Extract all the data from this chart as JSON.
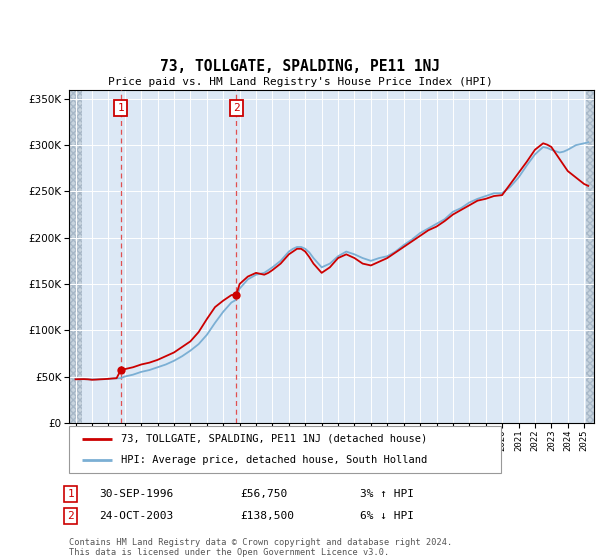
{
  "title": "73, TOLLGATE, SPALDING, PE11 1NJ",
  "subtitle": "Price paid vs. HM Land Registry's House Price Index (HPI)",
  "ylim": [
    0,
    360000
  ],
  "yticks": [
    0,
    50000,
    100000,
    150000,
    200000,
    250000,
    300000,
    350000
  ],
  "hpi_color": "#7bafd4",
  "price_color": "#cc0000",
  "annotation_box_color": "#cc0000",
  "dashed_line_color": "#e05050",
  "purchase1_year": 1996.75,
  "purchase1_price": 56750,
  "purchase1_label": "1",
  "purchase1_date": "30-SEP-1996",
  "purchase1_pct": "3%",
  "purchase1_dir": "↑",
  "purchase2_year": 2003.8,
  "purchase2_price": 138500,
  "purchase2_label": "2",
  "purchase2_date": "24-OCT-2003",
  "purchase2_pct": "6%",
  "purchase2_dir": "↓",
  "legend_line1": "73, TOLLGATE, SPALDING, PE11 1NJ (detached house)",
  "legend_line2": "HPI: Average price, detached house, South Holland",
  "footer": "Contains HM Land Registry data © Crown copyright and database right 2024.\nThis data is licensed under the Open Government Licence v3.0.",
  "xmin": 1993.6,
  "xmax": 2025.6,
  "hpi_data": [
    [
      1994.0,
      47000
    ],
    [
      1994.25,
      47100
    ],
    [
      1994.5,
      47200
    ],
    [
      1994.75,
      47000
    ],
    [
      1995.0,
      46800
    ],
    [
      1995.25,
      46900
    ],
    [
      1995.5,
      47000
    ],
    [
      1995.75,
      47200
    ],
    [
      1996.0,
      47500
    ],
    [
      1996.25,
      47800
    ],
    [
      1996.5,
      48000
    ],
    [
      1996.75,
      48200
    ],
    [
      1997.0,
      50000
    ],
    [
      1997.25,
      51000
    ],
    [
      1997.5,
      52000
    ],
    [
      1997.75,
      53500
    ],
    [
      1998.0,
      55000
    ],
    [
      1998.25,
      56000
    ],
    [
      1998.5,
      57000
    ],
    [
      1998.75,
      58500
    ],
    [
      1999.0,
      60000
    ],
    [
      1999.25,
      61500
    ],
    [
      1999.5,
      63000
    ],
    [
      1999.75,
      65000
    ],
    [
      2000.0,
      67000
    ],
    [
      2000.25,
      69500
    ],
    [
      2000.5,
      72000
    ],
    [
      2000.75,
      75000
    ],
    [
      2001.0,
      78000
    ],
    [
      2001.25,
      81500
    ],
    [
      2001.5,
      85000
    ],
    [
      2001.75,
      90000
    ],
    [
      2002.0,
      95000
    ],
    [
      2002.25,
      101500
    ],
    [
      2002.5,
      108000
    ],
    [
      2002.75,
      114000
    ],
    [
      2003.0,
      120000
    ],
    [
      2003.25,
      125000
    ],
    [
      2003.5,
      130000
    ],
    [
      2003.75,
      132500
    ],
    [
      2004.0,
      145000
    ],
    [
      2004.25,
      150000
    ],
    [
      2004.5,
      155000
    ],
    [
      2004.75,
      157500
    ],
    [
      2005.0,
      160000
    ],
    [
      2005.25,
      161000
    ],
    [
      2005.5,
      162000
    ],
    [
      2005.75,
      165000
    ],
    [
      2006.0,
      168000
    ],
    [
      2006.25,
      171500
    ],
    [
      2006.5,
      175000
    ],
    [
      2006.75,
      180000
    ],
    [
      2007.0,
      185000
    ],
    [
      2007.25,
      188000
    ],
    [
      2007.5,
      190000
    ],
    [
      2007.75,
      190000
    ],
    [
      2008.0,
      188000
    ],
    [
      2008.25,
      184000
    ],
    [
      2008.5,
      178000
    ],
    [
      2008.75,
      173000
    ],
    [
      2009.0,
      168000
    ],
    [
      2009.25,
      170000
    ],
    [
      2009.5,
      172000
    ],
    [
      2009.75,
      176000
    ],
    [
      2010.0,
      180000
    ],
    [
      2010.25,
      182500
    ],
    [
      2010.5,
      185000
    ],
    [
      2010.75,
      183500
    ],
    [
      2011.0,
      182000
    ],
    [
      2011.25,
      180000
    ],
    [
      2011.5,
      178000
    ],
    [
      2011.75,
      176500
    ],
    [
      2012.0,
      175000
    ],
    [
      2012.25,
      176500
    ],
    [
      2012.5,
      178000
    ],
    [
      2012.75,
      179000
    ],
    [
      2013.0,
      180000
    ],
    [
      2013.25,
      182500
    ],
    [
      2013.5,
      185000
    ],
    [
      2013.75,
      188500
    ],
    [
      2014.0,
      192000
    ],
    [
      2014.25,
      195000
    ],
    [
      2014.5,
      198000
    ],
    [
      2014.75,
      201500
    ],
    [
      2015.0,
      205000
    ],
    [
      2015.25,
      207500
    ],
    [
      2015.5,
      210000
    ],
    [
      2015.75,
      212500
    ],
    [
      2016.0,
      215000
    ],
    [
      2016.25,
      217500
    ],
    [
      2016.5,
      220000
    ],
    [
      2016.75,
      224000
    ],
    [
      2017.0,
      228000
    ],
    [
      2017.25,
      230000
    ],
    [
      2017.5,
      232000
    ],
    [
      2017.75,
      235000
    ],
    [
      2018.0,
      238000
    ],
    [
      2018.25,
      240000
    ],
    [
      2018.5,
      242000
    ],
    [
      2018.75,
      243500
    ],
    [
      2019.0,
      245000
    ],
    [
      2019.25,
      246500
    ],
    [
      2019.5,
      248000
    ],
    [
      2019.75,
      248000
    ],
    [
      2020.0,
      248000
    ],
    [
      2020.25,
      251500
    ],
    [
      2020.5,
      255000
    ],
    [
      2020.75,
      260000
    ],
    [
      2021.0,
      265000
    ],
    [
      2021.25,
      271500
    ],
    [
      2021.5,
      278000
    ],
    [
      2021.75,
      284000
    ],
    [
      2022.0,
      290000
    ],
    [
      2022.25,
      294000
    ],
    [
      2022.5,
      298000
    ],
    [
      2022.75,
      297000
    ],
    [
      2023.0,
      295000
    ],
    [
      2023.25,
      293500
    ],
    [
      2023.5,
      292000
    ],
    [
      2023.75,
      293000
    ],
    [
      2024.0,
      295000
    ],
    [
      2024.25,
      297500
    ],
    [
      2024.5,
      300000
    ],
    [
      2024.75,
      301000
    ],
    [
      2025.0,
      302000
    ],
    [
      2025.25,
      303000
    ]
  ],
  "price_data": [
    [
      1994.0,
      47000
    ],
    [
      1994.25,
      47100
    ],
    [
      1994.5,
      47200
    ],
    [
      1994.75,
      47000
    ],
    [
      1995.0,
      46500
    ],
    [
      1995.25,
      46700
    ],
    [
      1995.5,
      47000
    ],
    [
      1995.75,
      47200
    ],
    [
      1996.0,
      47500
    ],
    [
      1996.25,
      47900
    ],
    [
      1996.5,
      48200
    ],
    [
      1996.75,
      56750
    ],
    [
      1997.0,
      58000
    ],
    [
      1997.25,
      59000
    ],
    [
      1997.5,
      60000
    ],
    [
      1997.75,
      61500
    ],
    [
      1998.0,
      63000
    ],
    [
      1998.25,
      64000
    ],
    [
      1998.5,
      65000
    ],
    [
      1998.75,
      66500
    ],
    [
      1999.0,
      68000
    ],
    [
      1999.25,
      70000
    ],
    [
      1999.5,
      72000
    ],
    [
      1999.75,
      74000
    ],
    [
      2000.0,
      76000
    ],
    [
      2000.25,
      79000
    ],
    [
      2000.5,
      82000
    ],
    [
      2000.75,
      85000
    ],
    [
      2001.0,
      88000
    ],
    [
      2001.25,
      93000
    ],
    [
      2001.5,
      98000
    ],
    [
      2001.75,
      105000
    ],
    [
      2002.0,
      112000
    ],
    [
      2002.25,
      118500
    ],
    [
      2002.5,
      125000
    ],
    [
      2002.75,
      128500
    ],
    [
      2003.0,
      132000
    ],
    [
      2003.25,
      135000
    ],
    [
      2003.5,
      138000
    ],
    [
      2003.75,
      138500
    ],
    [
      2003.8,
      138500
    ],
    [
      2004.0,
      150000
    ],
    [
      2004.25,
      154000
    ],
    [
      2004.5,
      158000
    ],
    [
      2004.75,
      160000
    ],
    [
      2005.0,
      162000
    ],
    [
      2005.25,
      161000
    ],
    [
      2005.5,
      160000
    ],
    [
      2005.75,
      162000
    ],
    [
      2006.0,
      165000
    ],
    [
      2006.25,
      168500
    ],
    [
      2006.5,
      172000
    ],
    [
      2006.75,
      177000
    ],
    [
      2007.0,
      182000
    ],
    [
      2007.25,
      185000
    ],
    [
      2007.5,
      188000
    ],
    [
      2007.75,
      188000
    ],
    [
      2008.0,
      185000
    ],
    [
      2008.25,
      179000
    ],
    [
      2008.5,
      172000
    ],
    [
      2008.75,
      167000
    ],
    [
      2009.0,
      162000
    ],
    [
      2009.25,
      165000
    ],
    [
      2009.5,
      168000
    ],
    [
      2009.75,
      173000
    ],
    [
      2010.0,
      178000
    ],
    [
      2010.25,
      180000
    ],
    [
      2010.5,
      182000
    ],
    [
      2010.75,
      180000
    ],
    [
      2011.0,
      178000
    ],
    [
      2011.25,
      175000
    ],
    [
      2011.5,
      172000
    ],
    [
      2011.75,
      171000
    ],
    [
      2012.0,
      170000
    ],
    [
      2012.25,
      172000
    ],
    [
      2012.5,
      174000
    ],
    [
      2012.75,
      176000
    ],
    [
      2013.0,
      178000
    ],
    [
      2013.25,
      181000
    ],
    [
      2013.5,
      184000
    ],
    [
      2013.75,
      187000
    ],
    [
      2014.0,
      190000
    ],
    [
      2014.25,
      193000
    ],
    [
      2014.5,
      196000
    ],
    [
      2014.75,
      199000
    ],
    [
      2015.0,
      202000
    ],
    [
      2015.25,
      205000
    ],
    [
      2015.5,
      208000
    ],
    [
      2015.75,
      210000
    ],
    [
      2016.0,
      212000
    ],
    [
      2016.25,
      215000
    ],
    [
      2016.5,
      218000
    ],
    [
      2016.75,
      221500
    ],
    [
      2017.0,
      225000
    ],
    [
      2017.25,
      227500
    ],
    [
      2017.5,
      230000
    ],
    [
      2017.75,
      232500
    ],
    [
      2018.0,
      235000
    ],
    [
      2018.25,
      237500
    ],
    [
      2018.5,
      240000
    ],
    [
      2018.75,
      241000
    ],
    [
      2019.0,
      242000
    ],
    [
      2019.25,
      243500
    ],
    [
      2019.5,
      245000
    ],
    [
      2019.75,
      245500
    ],
    [
      2020.0,
      246000
    ],
    [
      2020.25,
      252000
    ],
    [
      2020.5,
      258000
    ],
    [
      2020.75,
      264000
    ],
    [
      2021.0,
      270000
    ],
    [
      2021.25,
      276000
    ],
    [
      2021.5,
      282000
    ],
    [
      2021.75,
      288500
    ],
    [
      2022.0,
      295000
    ],
    [
      2022.25,
      298500
    ],
    [
      2022.5,
      302000
    ],
    [
      2022.75,
      300500
    ],
    [
      2023.0,
      298000
    ],
    [
      2023.25,
      291500
    ],
    [
      2023.5,
      285000
    ],
    [
      2023.75,
      278500
    ],
    [
      2024.0,
      272000
    ],
    [
      2024.25,
      268500
    ],
    [
      2024.5,
      265000
    ],
    [
      2024.75,
      261500
    ],
    [
      2025.0,
      258000
    ],
    [
      2025.25,
      256000
    ]
  ],
  "plot_bg_color": "#dce8f5",
  "hatch_color": "#c0ccd8"
}
